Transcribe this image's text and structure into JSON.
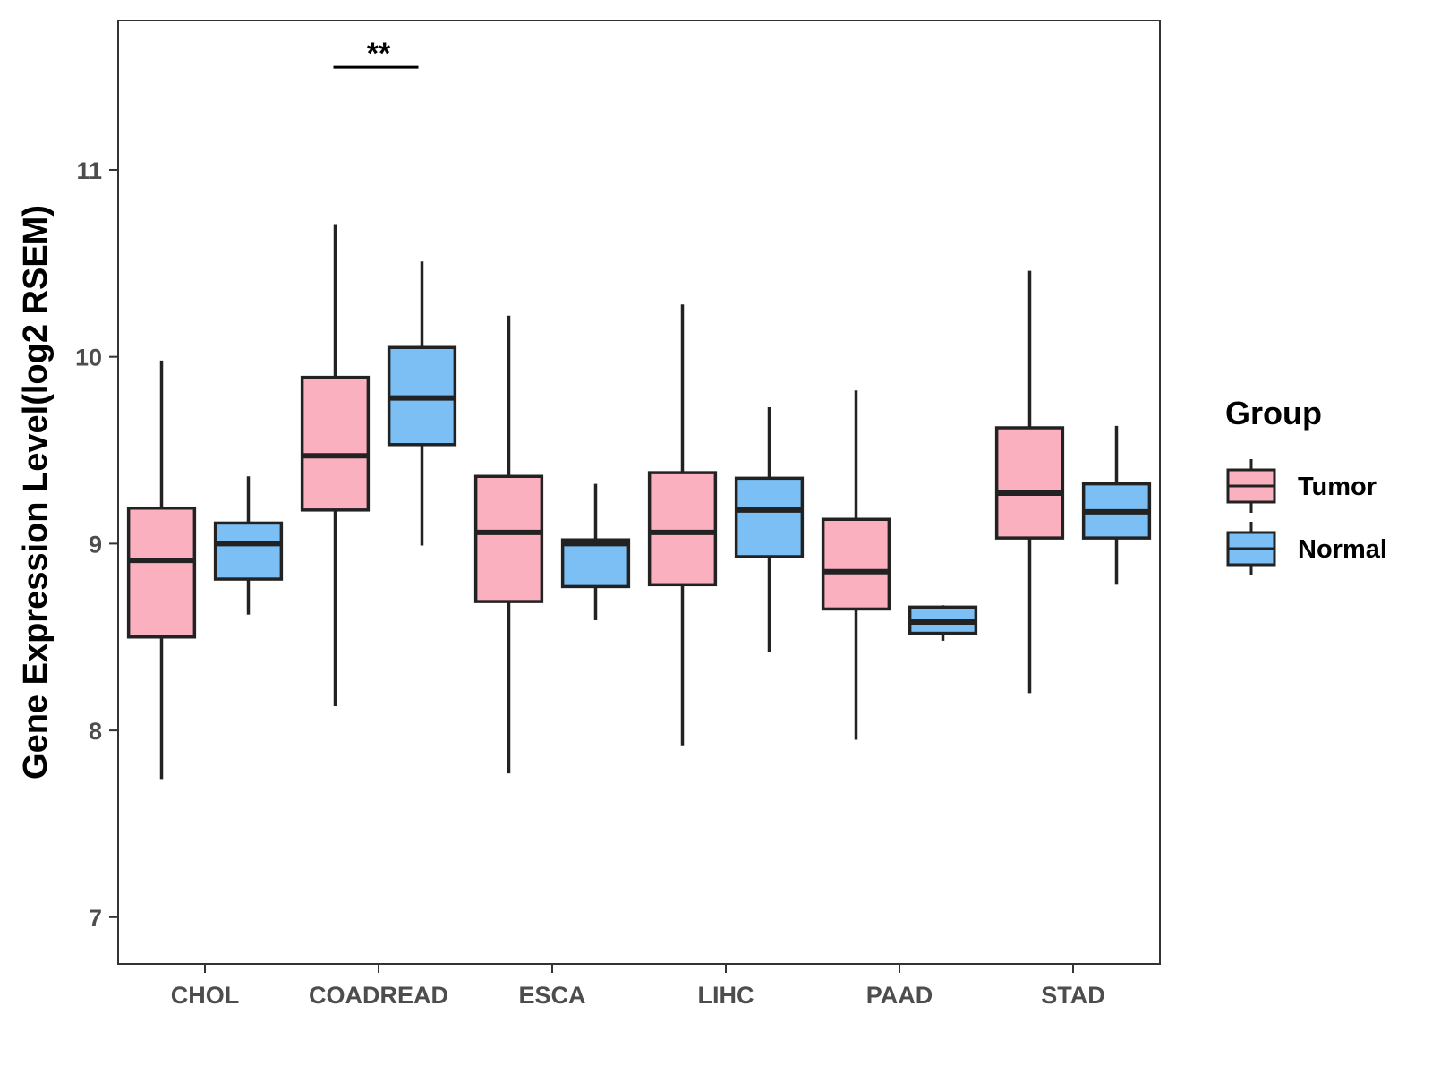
{
  "chart_data": {
    "type": "boxplot",
    "title": "",
    "xlabel": "",
    "ylabel": "Gene Expression Level(log2 RSEM)",
    "ylim": [
      6.75,
      11.8
    ],
    "yticks": [
      7,
      8,
      9,
      10,
      11
    ],
    "categories": [
      "CHOL",
      "COADREAD",
      "ESCA",
      "LIHC",
      "PAAD",
      "STAD"
    ],
    "legend": {
      "title": "Group",
      "position": "right"
    },
    "series": [
      {
        "name": "Tumor",
        "color": "#fbb0c0",
        "boxes": [
          {
            "min": 7.74,
            "q1": 8.5,
            "median": 8.91,
            "q3": 9.19,
            "max": 9.98
          },
          {
            "min": 8.13,
            "q1": 9.18,
            "median": 9.47,
            "q3": 9.89,
            "max": 10.71
          },
          {
            "min": 7.77,
            "q1": 8.69,
            "median": 9.06,
            "q3": 9.36,
            "max": 10.22
          },
          {
            "min": 7.92,
            "q1": 8.78,
            "median": 9.06,
            "q3": 9.38,
            "max": 10.28
          },
          {
            "min": 7.95,
            "q1": 8.65,
            "median": 8.85,
            "q3": 9.13,
            "max": 9.82
          },
          {
            "min": 8.2,
            "q1": 9.03,
            "median": 9.27,
            "q3": 9.62,
            "max": 10.46
          }
        ]
      },
      {
        "name": "Normal",
        "color": "#7bbff5",
        "boxes": [
          {
            "min": 8.62,
            "q1": 8.81,
            "median": 9.0,
            "q3": 9.11,
            "max": 9.36
          },
          {
            "min": 8.99,
            "q1": 9.53,
            "median": 9.78,
            "q3": 10.05,
            "max": 10.51
          },
          {
            "min": 8.59,
            "q1": 8.77,
            "median": 9.0,
            "q3": 9.02,
            "max": 9.32
          },
          {
            "min": 8.42,
            "q1": 8.93,
            "median": 9.18,
            "q3": 9.35,
            "max": 9.73
          },
          {
            "min": 8.48,
            "q1": 8.52,
            "median": 8.58,
            "q3": 8.66,
            "max": 8.67
          },
          {
            "min": 8.78,
            "q1": 9.03,
            "median": 9.17,
            "q3": 9.32,
            "max": 9.63
          }
        ]
      }
    ],
    "annotations": [
      {
        "category": "COADREAD",
        "label": "**",
        "y": 11.55
      }
    ]
  }
}
